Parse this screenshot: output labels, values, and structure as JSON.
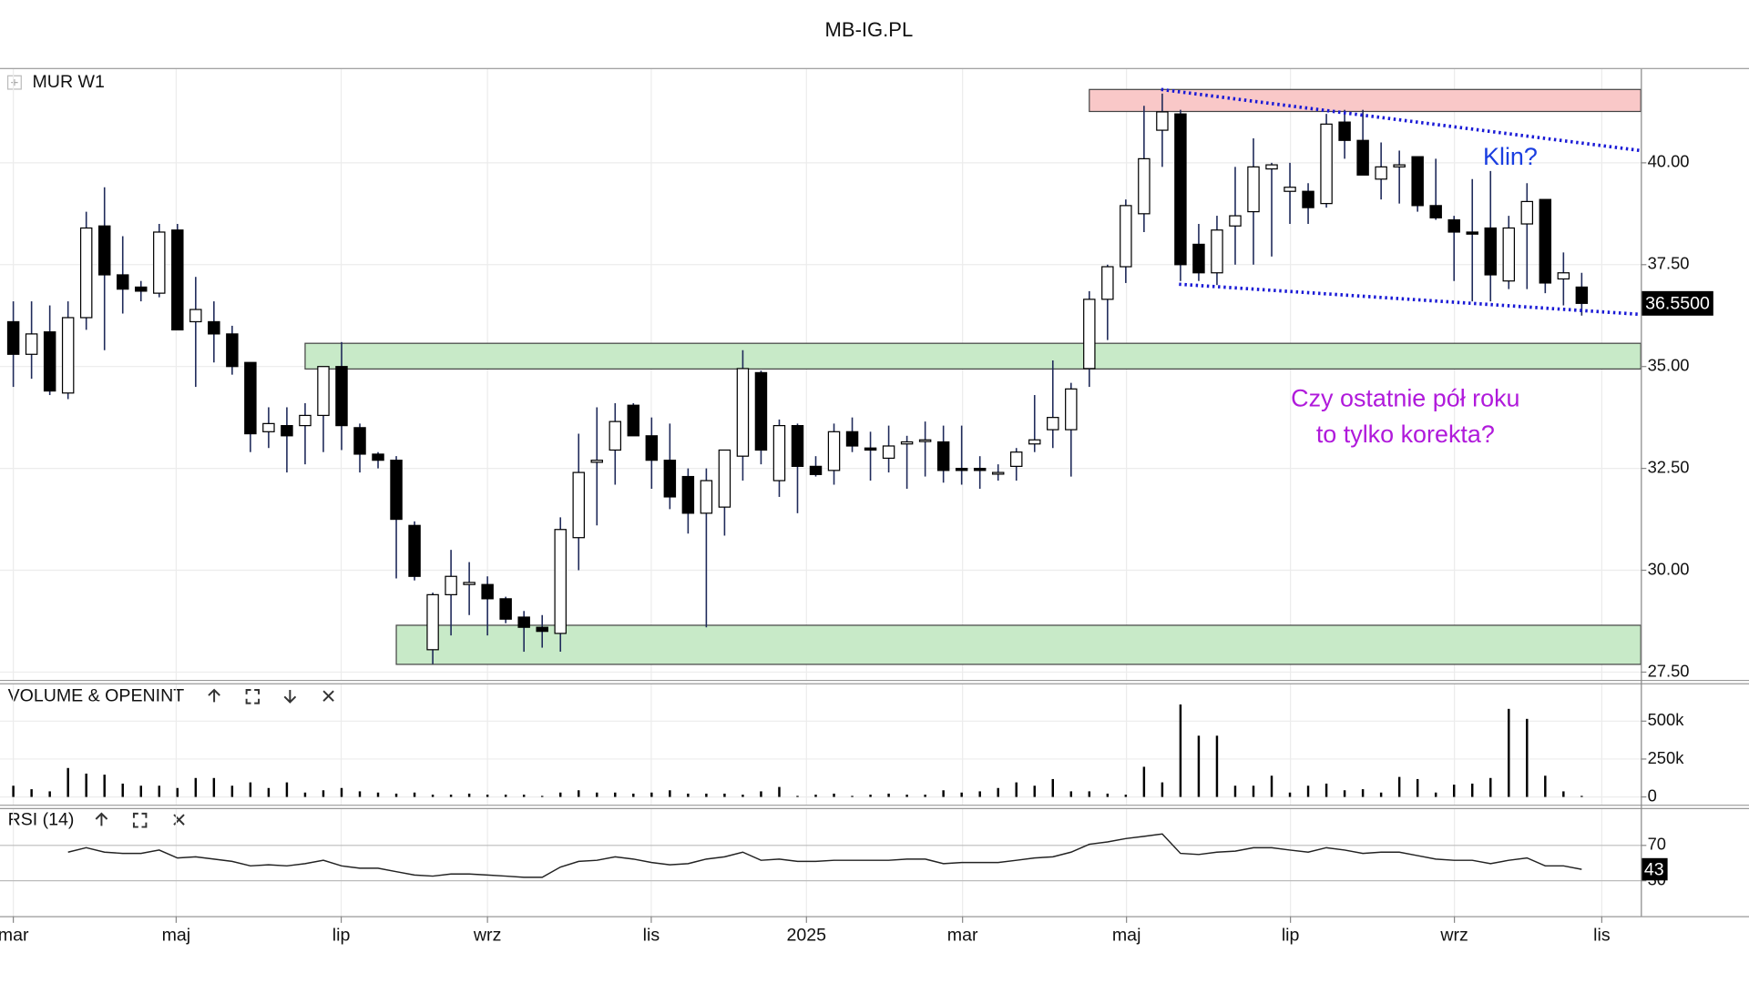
{
  "chart_data": {
    "type": "candlestick",
    "title": "MB-IG.PL",
    "symbol_label": "MUR W1",
    "open": [
      36.1,
      35.3,
      35.85,
      34.35,
      36.2,
      38.45,
      37.25,
      36.95,
      36.8,
      38.35,
      36.1,
      36.1,
      35.8,
      35.1,
      33.4,
      33.55,
      33.55,
      33.8,
      35.0,
      33.5,
      32.85,
      32.7,
      31.1,
      28.05,
      29.4,
      29.65,
      29.65,
      29.3,
      28.85,
      28.6,
      28.45,
      30.8,
      32.65,
      32.95,
      34.05,
      33.3,
      32.7,
      32.3,
      31.4,
      31.55,
      32.8,
      34.85,
      32.2,
      33.55,
      32.55,
      32.45,
      33.4,
      33.0,
      32.75,
      33.1,
      33.2,
      33.15,
      32.5,
      32.5,
      32.4,
      32.55,
      33.1,
      33.45,
      33.45,
      34.95,
      36.65,
      37.45,
      38.75,
      40.8,
      41.2,
      38.0,
      37.3,
      38.45,
      38.8,
      39.85,
      39.3,
      39.3,
      39.0,
      41.0,
      40.55,
      39.6,
      39.9,
      40.15,
      38.95,
      38.6,
      38.3,
      38.4,
      37.1,
      38.5,
      39.1,
      37.15,
      36.95
    ],
    "high": [
      36.6,
      36.6,
      36.5,
      36.6,
      38.8,
      39.4,
      38.2,
      37.1,
      38.5,
      38.5,
      37.2,
      36.6,
      36.0,
      35.1,
      34.0,
      34.0,
      34.1,
      35.0,
      35.6,
      33.6,
      32.9,
      32.8,
      31.2,
      29.45,
      30.5,
      30.2,
      29.85,
      29.35,
      29.0,
      28.9,
      31.3,
      33.35,
      34.0,
      34.1,
      34.1,
      33.75,
      33.6,
      32.5,
      32.5,
      32.95,
      35.4,
      34.9,
      33.7,
      33.6,
      32.8,
      33.6,
      33.75,
      33.4,
      33.55,
      33.3,
      33.65,
      33.55,
      33.55,
      32.8,
      32.6,
      33.0,
      34.3,
      35.15,
      34.6,
      36.85,
      37.5,
      39.1,
      41.4,
      41.7,
      41.3,
      38.5,
      38.7,
      39.9,
      40.6,
      40.0,
      40.0,
      39.5,
      41.2,
      41.3,
      41.3,
      40.5,
      40.3,
      40.15,
      40.1,
      38.7,
      39.6,
      39.8,
      38.7,
      39.5,
      39.1,
      37.8,
      37.3
    ],
    "low": [
      34.5,
      34.7,
      34.3,
      34.2,
      35.9,
      35.4,
      36.3,
      36.6,
      36.7,
      35.9,
      34.5,
      35.1,
      34.8,
      32.9,
      33.0,
      32.4,
      32.6,
      32.9,
      32.95,
      32.4,
      32.5,
      29.8,
      29.75,
      27.7,
      28.4,
      28.9,
      28.4,
      28.7,
      28.0,
      28.1,
      28.0,
      30.0,
      31.1,
      32.1,
      33.3,
      32.0,
      31.5,
      30.9,
      28.6,
      30.85,
      32.2,
      32.6,
      31.8,
      31.4,
      32.3,
      32.1,
      32.9,
      32.2,
      32.4,
      32.0,
      32.3,
      32.15,
      32.1,
      32.0,
      32.2,
      32.2,
      32.9,
      33.0,
      32.3,
      34.5,
      35.65,
      37.05,
      38.3,
      39.9,
      37.1,
      37.1,
      37.0,
      37.5,
      37.5,
      37.7,
      38.5,
      38.5,
      38.9,
      40.1,
      39.7,
      39.1,
      39.0,
      38.8,
      38.6,
      37.1,
      36.6,
      36.6,
      36.9,
      36.9,
      36.8,
      36.5,
      36.25
    ],
    "close": [
      35.3,
      35.8,
      34.4,
      36.2,
      38.4,
      37.25,
      36.9,
      36.85,
      38.3,
      35.9,
      36.4,
      35.8,
      35.0,
      33.35,
      33.6,
      33.3,
      33.8,
      35.0,
      33.55,
      32.85,
      32.7,
      31.25,
      29.85,
      29.4,
      29.85,
      29.7,
      29.3,
      28.8,
      28.6,
      28.5,
      31.0,
      32.4,
      32.7,
      33.65,
      33.3,
      32.7,
      31.8,
      31.4,
      32.2,
      32.95,
      34.95,
      32.95,
      33.55,
      32.55,
      32.35,
      33.4,
      33.05,
      32.95,
      33.05,
      33.15,
      33.2,
      32.45,
      32.45,
      32.45,
      32.4,
      32.9,
      33.2,
      33.75,
      34.45,
      36.65,
      37.45,
      38.95,
      40.1,
      41.25,
      37.5,
      37.3,
      38.35,
      38.7,
      39.9,
      39.95,
      39.4,
      38.9,
      40.95,
      40.55,
      39.7,
      39.9,
      39.95,
      38.95,
      38.65,
      38.3,
      38.25,
      37.25,
      38.4,
      39.05,
      37.05,
      37.3,
      36.55
    ],
    "last_price_label": "36.5500",
    "up_color": "#ffffff",
    "down_color": "#000000",
    "wick_color": "#1f2a5a",
    "ylim": [
      27.31,
      42.3
    ],
    "yticks": [
      {
        "value": 27.5,
        "label": "27.50"
      },
      {
        "value": 30,
        "label": "30.00"
      },
      {
        "value": 32.5,
        "label": "32.50"
      },
      {
        "value": 35,
        "label": "35.00"
      },
      {
        "value": 37.5,
        "label": "37.50"
      },
      {
        "value": 40,
        "label": "40.00"
      }
    ],
    "xlim": [
      -0.73,
      89.24
    ],
    "xticks": [
      {
        "value": 0,
        "label": "mar"
      },
      {
        "value": 8.93,
        "label": "maj"
      },
      {
        "value": 17.98,
        "label": "lip"
      },
      {
        "value": 26.0,
        "label": "wrz"
      },
      {
        "value": 34.98,
        "label": "lis"
      },
      {
        "value": 43.49,
        "label": "2025"
      },
      {
        "value": 52.05,
        "label": "mar"
      },
      {
        "value": 61.04,
        "label": "maj"
      },
      {
        "value": 70.03,
        "label": "lip"
      },
      {
        "value": 79.02,
        "label": "wrz"
      },
      {
        "value": 87.1,
        "label": "lis"
      }
    ],
    "grid": true,
    "zones": [
      {
        "start": 59,
        "low": 41.26,
        "high": 41.8,
        "color": "#f9c8c8"
      },
      {
        "start": 16,
        "low": 34.94,
        "high": 35.57,
        "color": "#c8eac8"
      },
      {
        "start": 21,
        "low": 27.69,
        "high": 28.65,
        "color": "#c8eac8"
      }
    ],
    "trendlines": [
      {
        "start": 62.94,
        "end": 89.24,
        "from": 41.8,
        "to": 40.3,
        "color": "#1a1ad6"
      },
      {
        "start": 63.92,
        "end": 89.24,
        "from": 37.02,
        "to": 36.28,
        "color": "#1a1ad6"
      }
    ],
    "notes": [
      {
        "text": "Klin?",
        "color": "#1a3ee0"
      },
      {
        "text": "Czy ostatnie pół roku",
        "color": "#b01adb"
      },
      {
        "text": "to tylko korekta?",
        "color": "#b01adb"
      }
    ],
    "volume": {
      "title": "VOLUME & OPENINT",
      "color": "#000000",
      "values": [
        74000,
        51000,
        37000,
        191000,
        154000,
        147000,
        88000,
        74000,
        74000,
        59000,
        125000,
        125000,
        74000,
        96000,
        59000,
        96000,
        29000,
        44000,
        59000,
        37000,
        29000,
        22000,
        29000,
        15000,
        15000,
        22000,
        15000,
        15000,
        15000,
        7000,
        29000,
        44000,
        29000,
        29000,
        22000,
        29000,
        44000,
        22000,
        22000,
        22000,
        15000,
        37000,
        66000,
        7000,
        15000,
        22000,
        7000,
        15000,
        22000,
        15000,
        15000,
        44000,
        29000,
        37000,
        59000,
        96000,
        74000,
        118000,
        37000,
        37000,
        22000,
        15000,
        199000,
        96000,
        610000,
        404000,
        404000,
        74000,
        74000,
        140000,
        29000,
        74000,
        88000,
        44000,
        51000,
        29000,
        132000,
        118000,
        29000,
        81000,
        88000,
        125000,
        581000,
        515000,
        140000,
        37000,
        7000
      ],
      "ylim": [
        -51000,
        743000
      ],
      "yticks": [
        0,
        {
          "value": 250000,
          "label": "250k"
        },
        {
          "value": 500000,
          "label": "500k"
        }
      ]
    },
    "rsi": {
      "title": "RSI (14)",
      "color": "#222222",
      "values": [
        null,
        null,
        null,
        62.3,
        67.4,
        62.3,
        61,
        61,
        64.8,
        55.8,
        57.1,
        54.5,
        51.9,
        46.8,
        48.1,
        46.8,
        49.4,
        53.2,
        46.8,
        44.2,
        44.2,
        40.3,
        36.5,
        35.2,
        37.7,
        37.7,
        36.5,
        35.2,
        33.9,
        33.9,
        45.5,
        51.9,
        53.2,
        57.1,
        54.5,
        50.6,
        48.1,
        49.4,
        54.5,
        57.1,
        62.3,
        53.2,
        54.5,
        51.9,
        51.9,
        53.2,
        53.2,
        53.2,
        53.2,
        54.5,
        54.5,
        49.4,
        50.6,
        50.6,
        50.6,
        53.2,
        55.8,
        57.1,
        62.3,
        71.3,
        73.9,
        77.7,
        80.3,
        82.9,
        60.9,
        59.7,
        62.3,
        63.5,
        67.4,
        67.4,
        64.8,
        62.3,
        67.4,
        64.8,
        60.9,
        62.3,
        62.3,
        58.4,
        54.5,
        53.2,
        53.2,
        49.4,
        53.2,
        55.8,
        46.8,
        46.8,
        43
      ],
      "ylim": [
        -10,
        111
      ],
      "yticks": [
        30,
        70
      ]
    }
  }
}
